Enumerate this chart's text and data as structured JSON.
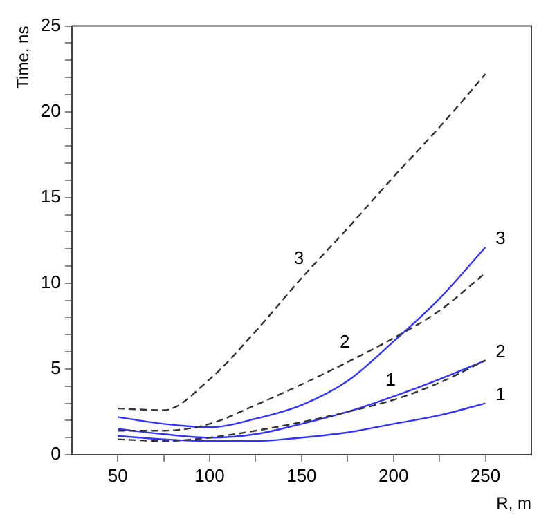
{
  "chart_data": {
    "type": "line",
    "xlabel": "R, m",
    "ylabel": "Time, ns",
    "xlim": [
      25,
      275
    ],
    "ylim": [
      0,
      25
    ],
    "xticks": [
      50,
      {
        "value": 75,
        "label": null
      },
      100,
      {
        "value": 125,
        "label": null
      },
      150,
      {
        "value": 175,
        "label": null
      },
      200,
      {
        "value": 225,
        "label": null
      },
      250
    ],
    "yticks": [
      0,
      {
        "value": 1,
        "label": null
      },
      {
        "value": 2,
        "label": null
      },
      {
        "value": 3,
        "label": null
      },
      {
        "value": 4,
        "label": null
      },
      5,
      {
        "value": 6,
        "label": null
      },
      {
        "value": 7,
        "label": null
      },
      {
        "value": 8,
        "label": null
      },
      {
        "value": 9,
        "label": null
      },
      10,
      {
        "value": 11,
        "label": null
      },
      {
        "value": 12,
        "label": null
      },
      {
        "value": 13,
        "label": null
      },
      {
        "value": 14,
        "label": null
      },
      15,
      {
        "value": 16,
        "label": null
      },
      {
        "value": 17,
        "label": null
      },
      {
        "value": 18,
        "label": null
      },
      {
        "value": 19,
        "label": null
      },
      20,
      {
        "value": 21,
        "label": null
      },
      {
        "value": 22,
        "label": null
      },
      {
        "value": 23,
        "label": null
      },
      {
        "value": 24,
        "label": null
      },
      25
    ],
    "grid": false,
    "legend": false,
    "marker": "none",
    "x": [
      50,
      75,
      100,
      125,
      150,
      175,
      200,
      225,
      250
    ],
    "series": [
      {
        "name": "1",
        "color": "#3333ff",
        "line_style": "solid",
        "values": [
          1.1,
          0.9,
          0.8,
          0.8,
          1.0,
          1.3,
          1.8,
          2.3,
          3.0
        ]
      },
      {
        "name": "2",
        "color": "#3333ff",
        "line_style": "solid",
        "values": [
          1.5,
          1.2,
          1.0,
          1.2,
          1.8,
          2.5,
          3.4,
          4.4,
          5.5
        ]
      },
      {
        "name": "3",
        "color": "#3333ff",
        "line_style": "solid",
        "values": [
          2.2,
          1.8,
          1.6,
          2.1,
          2.9,
          4.3,
          6.6,
          9.1,
          12.1
        ]
      },
      {
        "name": "1",
        "color": "#333333",
        "line_style": "dashed",
        "values": [
          0.9,
          0.8,
          1.0,
          1.4,
          1.9,
          2.5,
          3.2,
          4.2,
          5.5
        ]
      },
      {
        "name": "2",
        "color": "#333333",
        "line_style": "dashed",
        "values": [
          1.4,
          1.4,
          1.8,
          2.9,
          4.1,
          5.4,
          6.8,
          8.4,
          10.6
        ]
      },
      {
        "name": "3",
        "color": "#333333",
        "line_style": "dashed",
        "values": [
          2.7,
          2.6,
          4.4,
          7.2,
          10.3,
          13.2,
          16.2,
          19.1,
          22.2
        ]
      }
    ]
  }
}
